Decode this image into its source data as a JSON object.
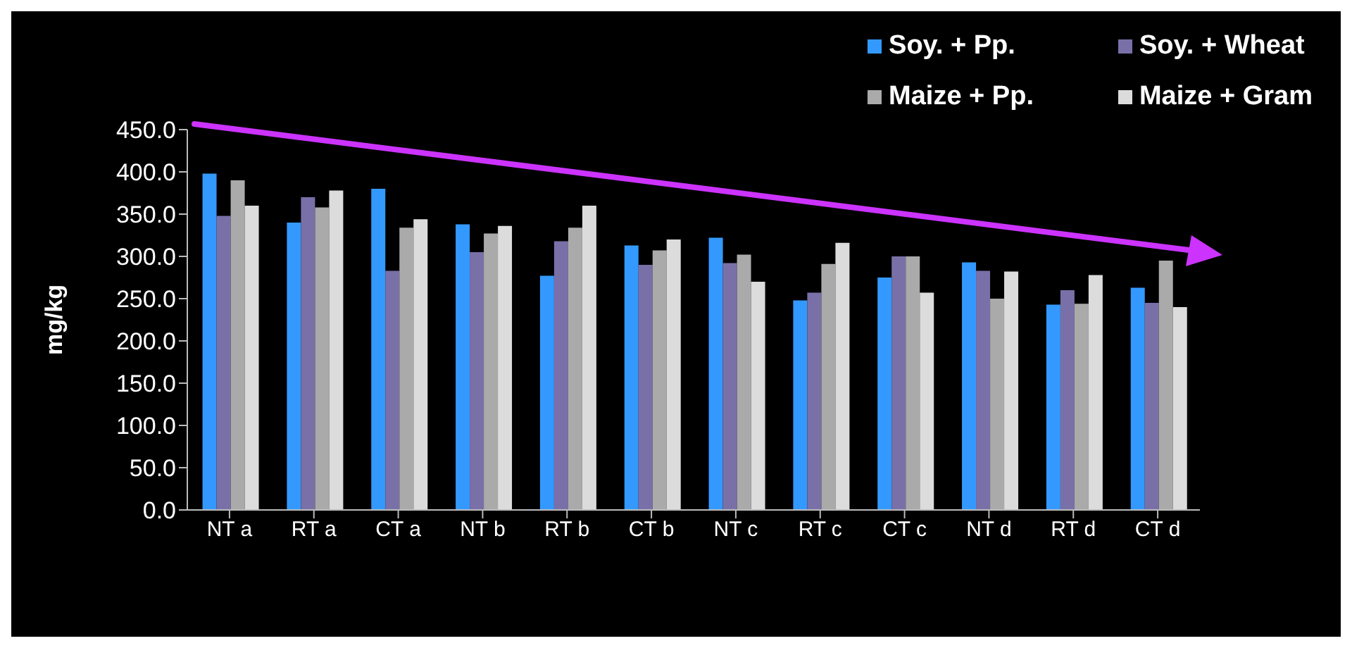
{
  "chart_data": {
    "type": "bar",
    "ylabel": "mg/kg",
    "categories": [
      "NT a",
      "RT a",
      "CT a",
      "NT b",
      "RT b",
      "CT b",
      "NT c",
      "RT c",
      "CT c",
      "NT d",
      "RT d",
      "CT d"
    ],
    "series": [
      {
        "name": "Soy. + Pp.",
        "color": "#3399ff",
        "values": [
          398,
          340,
          380,
          338,
          277,
          313,
          322,
          248,
          275,
          293,
          243,
          263
        ]
      },
      {
        "name": "Soy. + Wheat",
        "color": "#7a70a8",
        "values": [
          348,
          370,
          283,
          305,
          318,
          290,
          292,
          257,
          300,
          283,
          260,
          245
        ]
      },
      {
        "name": "Maize + Pp.",
        "color": "#aaaaaa",
        "values": [
          390,
          358,
          334,
          327,
          334,
          307,
          302,
          291,
          300,
          250,
          244,
          295
        ]
      },
      {
        "name": "Maize + Gram",
        "color": "#dcdcdc",
        "values": [
          360,
          378,
          344,
          336,
          360,
          320,
          270,
          316,
          257,
          282,
          278,
          240
        ]
      }
    ],
    "ylim": [
      0,
      450
    ],
    "yticks": [
      {
        "value": 0,
        "label": "0.0"
      },
      {
        "value": 50,
        "label": "50.0"
      },
      {
        "value": 100,
        "label": "100.0"
      },
      {
        "value": 150,
        "label": "150.0"
      },
      {
        "value": 200,
        "label": "200.0"
      },
      {
        "value": 250,
        "label": "250.0"
      },
      {
        "value": 300,
        "label": "300.0"
      },
      {
        "value": 350,
        "label": "350.0"
      },
      {
        "value": 400,
        "label": "400.0"
      },
      {
        "value": 450,
        "label": "450.0"
      }
    ],
    "grid": false,
    "legend": "top right"
  }
}
